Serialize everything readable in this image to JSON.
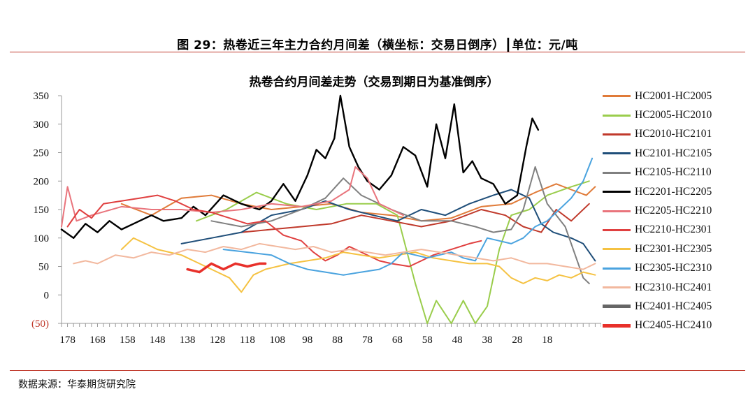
{
  "figure": {
    "title": "图 29：热卷近三年主力合约月间差（横坐标：交易日倒序）┃单位：元/吨",
    "source": "数据来源：华泰期货研究院"
  },
  "chart_data": {
    "type": "line",
    "title": "热卷合约月间差走势（交易到期日为基准倒序）",
    "xlabel": "",
    "ylabel": "",
    "xlim": [
      180,
      0
    ],
    "ylim": [
      -50,
      350
    ],
    "x_ticks": [
      "178",
      "168",
      "158",
      "148",
      "138",
      "128",
      "118",
      "108",
      "98",
      "88",
      "78",
      "68",
      "58",
      "48",
      "38",
      "28",
      "18"
    ],
    "y_ticks": [
      "350",
      "300",
      "250",
      "200",
      "150",
      "100",
      "50",
      "0",
      "(50)"
    ],
    "grid": false,
    "legend_position": "right",
    "series": [
      {
        "name": "HC2001-HC2005",
        "color": "#e07b39",
        "width": 2,
        "points": [
          [
            160,
            160
          ],
          [
            150,
            140
          ],
          [
            140,
            170
          ],
          [
            130,
            175
          ],
          [
            120,
            160
          ],
          [
            110,
            150
          ],
          [
            100,
            155
          ],
          [
            90,
            160
          ],
          [
            80,
            145
          ],
          [
            70,
            140
          ],
          [
            60,
            130
          ],
          [
            50,
            135
          ],
          [
            40,
            155
          ],
          [
            30,
            160
          ],
          [
            22,
            180
          ],
          [
            15,
            195
          ],
          [
            10,
            185
          ],
          [
            5,
            175
          ],
          [
            2,
            190
          ]
        ]
      },
      {
        "name": "HC2005-HC2010",
        "color": "#9acd4c",
        "width": 2,
        "points": [
          [
            135,
            130
          ],
          [
            125,
            150
          ],
          [
            115,
            180
          ],
          [
            105,
            160
          ],
          [
            95,
            150
          ],
          [
            85,
            160
          ],
          [
            75,
            160
          ],
          [
            68,
            140
          ],
          [
            62,
            20
          ],
          [
            58,
            -50
          ],
          [
            55,
            -10
          ],
          [
            50,
            -50
          ],
          [
            46,
            -10
          ],
          [
            42,
            -50
          ],
          [
            38,
            -20
          ],
          [
            34,
            80
          ],
          [
            30,
            140
          ],
          [
            24,
            150
          ],
          [
            18,
            175
          ],
          [
            10,
            190
          ],
          [
            4,
            200
          ]
        ]
      },
      {
        "name": "HC2010-HC2101",
        "color": "#c0392b",
        "width": 2,
        "points": [
          [
            120,
            110
          ],
          [
            110,
            115
          ],
          [
            100,
            120
          ],
          [
            90,
            125
          ],
          [
            80,
            140
          ],
          [
            70,
            130
          ],
          [
            60,
            120
          ],
          [
            50,
            130
          ],
          [
            40,
            150
          ],
          [
            32,
            140
          ],
          [
            26,
            120
          ],
          [
            20,
            110
          ],
          [
            15,
            150
          ],
          [
            10,
            130
          ],
          [
            4,
            160
          ]
        ]
      },
      {
        "name": "HC2101-HC2105",
        "color": "#1f4e79",
        "width": 2,
        "points": [
          [
            140,
            90
          ],
          [
            130,
            100
          ],
          [
            120,
            110
          ],
          [
            110,
            140
          ],
          [
            100,
            150
          ],
          [
            92,
            165
          ],
          [
            84,
            150
          ],
          [
            76,
            140
          ],
          [
            68,
            130
          ],
          [
            60,
            150
          ],
          [
            52,
            140
          ],
          [
            44,
            160
          ],
          [
            36,
            175
          ],
          [
            30,
            185
          ],
          [
            24,
            170
          ],
          [
            20,
            125
          ],
          [
            16,
            110
          ],
          [
            10,
            100
          ],
          [
            6,
            90
          ],
          [
            2,
            60
          ]
        ]
      },
      {
        "name": "HC2105-HC2110",
        "color": "#808080",
        "width": 2,
        "points": [
          [
            130,
            130
          ],
          [
            120,
            120
          ],
          [
            110,
            130
          ],
          [
            100,
            150
          ],
          [
            92,
            170
          ],
          [
            86,
            205
          ],
          [
            80,
            175
          ],
          [
            70,
            150
          ],
          [
            60,
            130
          ],
          [
            50,
            130
          ],
          [
            42,
            120
          ],
          [
            36,
            110
          ],
          [
            30,
            115
          ],
          [
            26,
            150
          ],
          [
            22,
            225
          ],
          [
            18,
            160
          ],
          [
            12,
            120
          ],
          [
            6,
            30
          ],
          [
            4,
            20
          ]
        ]
      },
      {
        "name": "HC2201-HC2205",
        "color": "#000000",
        "width": 2.4,
        "points": [
          [
            180,
            115
          ],
          [
            176,
            100
          ],
          [
            172,
            125
          ],
          [
            168,
            110
          ],
          [
            164,
            130
          ],
          [
            160,
            115
          ],
          [
            156,
            125
          ],
          [
            150,
            140
          ],
          [
            146,
            130
          ],
          [
            140,
            135
          ],
          [
            136,
            155
          ],
          [
            132,
            140
          ],
          [
            126,
            175
          ],
          [
            120,
            160
          ],
          [
            114,
            150
          ],
          [
            110,
            165
          ],
          [
            106,
            195
          ],
          [
            102,
            165
          ],
          [
            98,
            210
          ],
          [
            95,
            255
          ],
          [
            92,
            240
          ],
          [
            89,
            275
          ],
          [
            87,
            350
          ],
          [
            84,
            260
          ],
          [
            81,
            225
          ],
          [
            78,
            200
          ],
          [
            74,
            185
          ],
          [
            70,
            210
          ],
          [
            66,
            260
          ],
          [
            62,
            245
          ],
          [
            58,
            190
          ],
          [
            55,
            300
          ],
          [
            52,
            240
          ],
          [
            49,
            335
          ],
          [
            46,
            215
          ],
          [
            43,
            235
          ],
          [
            40,
            205
          ],
          [
            36,
            195
          ],
          [
            32,
            160
          ],
          [
            28,
            175
          ],
          [
            25,
            260
          ],
          [
            23,
            310
          ],
          [
            21,
            290
          ]
        ]
      },
      {
        "name": "HC2205-HC2210",
        "color": "#e9747c",
        "width": 2,
        "points": [
          [
            180,
            120
          ],
          [
            178,
            190
          ],
          [
            175,
            130
          ],
          [
            170,
            140
          ],
          [
            160,
            155
          ],
          [
            150,
            150
          ],
          [
            140,
            150
          ],
          [
            130,
            145
          ],
          [
            120,
            150
          ],
          [
            110,
            160
          ],
          [
            100,
            155
          ],
          [
            90,
            165
          ],
          [
            84,
            185
          ],
          [
            82,
            225
          ],
          [
            78,
            205
          ],
          [
            74,
            160
          ],
          [
            70,
            150
          ],
          [
            66,
            140
          ]
        ]
      },
      {
        "name": "HC2210-HC2301",
        "color": "#e04040",
        "width": 2,
        "points": [
          [
            178,
            120
          ],
          [
            174,
            150
          ],
          [
            170,
            135
          ],
          [
            166,
            160
          ],
          [
            160,
            165
          ],
          [
            154,
            170
          ],
          [
            148,
            175
          ],
          [
            142,
            165
          ],
          [
            136,
            150
          ],
          [
            130,
            145
          ],
          [
            124,
            135
          ],
          [
            118,
            125
          ],
          [
            112,
            130
          ],
          [
            106,
            105
          ],
          [
            100,
            95
          ],
          [
            96,
            75
          ],
          [
            92,
            60
          ],
          [
            88,
            70
          ],
          [
            84,
            85
          ],
          [
            80,
            75
          ],
          [
            74,
            60
          ],
          [
            70,
            55
          ],
          [
            64,
            50
          ],
          [
            60,
            60
          ],
          [
            56,
            70
          ],
          [
            50,
            80
          ],
          [
            44,
            90
          ],
          [
            40,
            95
          ]
        ]
      },
      {
        "name": "HC2301-HC2305",
        "color": "#f5c242",
        "width": 2,
        "points": [
          [
            160,
            80
          ],
          [
            156,
            100
          ],
          [
            152,
            90
          ],
          [
            148,
            80
          ],
          [
            144,
            75
          ],
          [
            140,
            70
          ],
          [
            134,
            55
          ],
          [
            128,
            40
          ],
          [
            124,
            30
          ],
          [
            120,
            5
          ],
          [
            116,
            35
          ],
          [
            112,
            45
          ],
          [
            108,
            50
          ],
          [
            104,
            55
          ],
          [
            98,
            60
          ],
          [
            92,
            65
          ],
          [
            86,
            75
          ],
          [
            80,
            70
          ],
          [
            74,
            65
          ],
          [
            68,
            70
          ],
          [
            62,
            75
          ],
          [
            56,
            65
          ],
          [
            50,
            60
          ],
          [
            44,
            55
          ],
          [
            38,
            55
          ],
          [
            34,
            50
          ],
          [
            30,
            30
          ],
          [
            26,
            20
          ],
          [
            22,
            30
          ],
          [
            18,
            25
          ],
          [
            14,
            35
          ],
          [
            10,
            30
          ],
          [
            6,
            40
          ],
          [
            2,
            35
          ]
        ]
      },
      {
        "name": "HC2305-HC2310",
        "color": "#4aa3df",
        "width": 2,
        "points": [
          [
            126,
            80
          ],
          [
            118,
            75
          ],
          [
            110,
            70
          ],
          [
            104,
            55
          ],
          [
            98,
            45
          ],
          [
            92,
            40
          ],
          [
            86,
            35
          ],
          [
            80,
            40
          ],
          [
            74,
            45
          ],
          [
            70,
            55
          ],
          [
            66,
            75
          ],
          [
            62,
            70
          ],
          [
            58,
            65
          ],
          [
            54,
            70
          ],
          [
            50,
            75
          ],
          [
            46,
            65
          ],
          [
            42,
            60
          ],
          [
            38,
            100
          ],
          [
            34,
            95
          ],
          [
            30,
            90
          ],
          [
            26,
            100
          ],
          [
            22,
            120
          ],
          [
            18,
            130
          ],
          [
            14,
            150
          ],
          [
            10,
            170
          ],
          [
            6,
            200
          ],
          [
            3,
            240
          ]
        ]
      },
      {
        "name": "HC2310-HC2401",
        "color": "#f2b89e",
        "width": 2,
        "points": [
          [
            176,
            55
          ],
          [
            172,
            60
          ],
          [
            168,
            55
          ],
          [
            162,
            70
          ],
          [
            156,
            65
          ],
          [
            150,
            75
          ],
          [
            144,
            70
          ],
          [
            138,
            80
          ],
          [
            132,
            75
          ],
          [
            126,
            85
          ],
          [
            120,
            80
          ],
          [
            114,
            90
          ],
          [
            108,
            85
          ],
          [
            102,
            80
          ],
          [
            96,
            85
          ],
          [
            90,
            75
          ],
          [
            84,
            80
          ],
          [
            78,
            75
          ],
          [
            72,
            70
          ],
          [
            66,
            75
          ],
          [
            60,
            80
          ],
          [
            54,
            75
          ],
          [
            48,
            70
          ],
          [
            42,
            65
          ],
          [
            36,
            60
          ],
          [
            30,
            65
          ],
          [
            24,
            55
          ],
          [
            18,
            55
          ],
          [
            12,
            50
          ],
          [
            6,
            45
          ],
          [
            2,
            55
          ]
        ]
      },
      {
        "name": "HC2401-HC2405",
        "color": "#666666",
        "width": 3.5,
        "points": []
      },
      {
        "name": "HC2405-HC2410",
        "color": "#e8302a",
        "width": 3.5,
        "points": [
          [
            138,
            45
          ],
          [
            134,
            40
          ],
          [
            130,
            55
          ],
          [
            126,
            45
          ],
          [
            122,
            55
          ],
          [
            118,
            50
          ],
          [
            114,
            55
          ],
          [
            112,
            55
          ]
        ]
      }
    ]
  }
}
